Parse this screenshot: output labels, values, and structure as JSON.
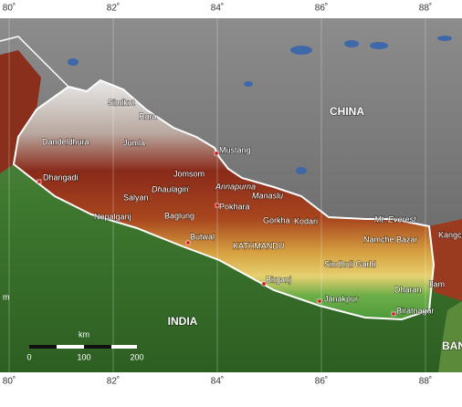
{
  "longitude_ticks_top": [
    {
      "value": 80,
      "label": "80˚"
    },
    {
      "value": 82,
      "label": "82˚"
    },
    {
      "value": 84,
      "label": "84˚"
    },
    {
      "value": 86,
      "label": "86˚"
    },
    {
      "value": 88,
      "label": "88˚"
    }
  ],
  "longitude_ticks_bottom": [
    {
      "value": 80,
      "label": "80˚"
    },
    {
      "value": 82,
      "label": "82˚"
    },
    {
      "value": 84,
      "label": "84˚"
    },
    {
      "value": 86,
      "label": "86˚"
    },
    {
      "value": 88,
      "label": "88˚"
    }
  ],
  "countries": [
    "CHINA",
    "INDIA",
    "BAN"
  ],
  "places": [
    "Simikot",
    "Rara",
    "Dandeldhura",
    "Jumla",
    "Mustang",
    "Dhangadi",
    "Jomsom",
    "Dhaulagiri",
    "Annapurna",
    "Manaslu",
    "Salyan",
    "Pokhara",
    "Nepalganj",
    "Baglung",
    "Gorkha",
    "Kodari",
    "Mt. Everest",
    "Namche Bazar",
    "Kangc",
    "Butwal",
    "KATHMANDU",
    "Sindhuli Garhi",
    "Birganj",
    "Ilam",
    "Dharan",
    "Janakpur",
    "Biratnagar"
  ],
  "scale_bar": {
    "unit": "km",
    "labels": [
      "0",
      "100",
      "200"
    ]
  },
  "edge_label": "m"
}
